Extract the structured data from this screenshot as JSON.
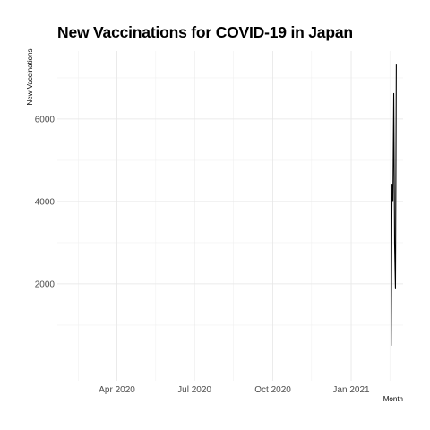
{
  "chart_data": {
    "type": "line",
    "title": "New Vaccinations for COVID-19 in Japan",
    "xlabel": "Month",
    "ylabel": "New Vaccinations",
    "x_type": "date",
    "xlim": [
      "2020-01-22",
      "2021-03-03"
    ],
    "ylim": [
      -350,
      7650
    ],
    "x_ticks": [
      {
        "date": "2020-04-01",
        "label": "Apr 2020"
      },
      {
        "date": "2020-07-01",
        "label": "Jul 2020"
      },
      {
        "date": "2020-10-01",
        "label": "Oct 2020"
      },
      {
        "date": "2021-01-01",
        "label": "Jan 2021"
      }
    ],
    "y_ticks": [
      2000,
      4000,
      6000
    ],
    "grid": true,
    "legend": "none",
    "line_color": "#000000",
    "series": [
      {
        "x": [
          "2021-02-17",
          "2021-02-18",
          "2021-02-19",
          "2021-02-20",
          "2021-02-21",
          "2021-02-22",
          "2021-02-23"
        ],
        "y": [
          500,
          4420,
          4020,
          6620,
          2980,
          1880,
          7320
        ]
      }
    ]
  }
}
